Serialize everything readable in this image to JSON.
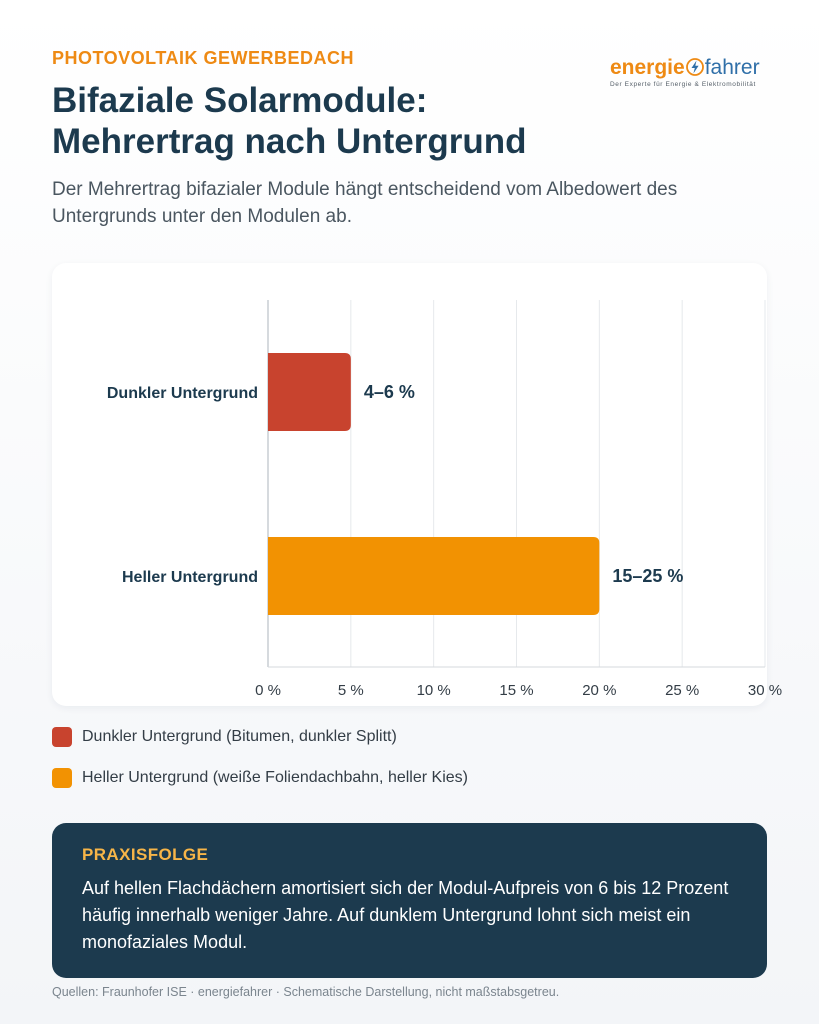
{
  "header": {
    "eyebrow": "PHOTOVOLTAIK GEWERBEDACH",
    "title_line1": "Bifaziale Solarmodule:",
    "title_line2": "Mehrertrag nach Untergrund",
    "subtitle": "Der Mehrertrag bifazialer Module hängt entscheidend vom Albedowert des Untergrunds unter den Modulen ab."
  },
  "logo": {
    "part1": "energie",
    "part2": "fahrer",
    "tagline": "Der Experte für Energie & Elektromobilität",
    "icon": "lightning-bolt-icon"
  },
  "chart_data": {
    "type": "bar",
    "orientation": "horizontal",
    "categories": [
      "Dunkler Untergrund",
      "Heller Untergrund"
    ],
    "values": [
      5,
      20
    ],
    "value_labels": [
      "4–6 %",
      "15–25 %"
    ],
    "colors": [
      "#c8432e",
      "#f29202"
    ],
    "xlim": [
      0,
      30
    ],
    "xticks": [
      0,
      5,
      10,
      15,
      20,
      25,
      30
    ],
    "xtick_labels": [
      "0 %",
      "5 %",
      "10 %",
      "15 %",
      "20 %",
      "25 %",
      "30 %"
    ],
    "grid": true,
    "xlabel": "",
    "ylabel": ""
  },
  "legend": {
    "items": [
      {
        "label": "Dunkler Untergrund (Bitumen, dunkler Splitt)",
        "color": "#c8432e"
      },
      {
        "label": "Heller Untergrund (weiße Foliendachbahn, heller Kies)",
        "color": "#f29202"
      }
    ]
  },
  "callout": {
    "title": "PRAXISFOLGE",
    "text": "Auf hellen Flachdächern amortisiert sich der Modul-Aufpreis von 6 bis 12 Prozent häufig innerhalb weniger Jahre. Auf dunklem Untergrund lohnt sich meist ein monofaziales Modul."
  },
  "footer": {
    "sources": "Quellen: Fraunhofer ISE · energiefahrer · Schematische Darstellung, nicht maßstabsgetreu."
  }
}
